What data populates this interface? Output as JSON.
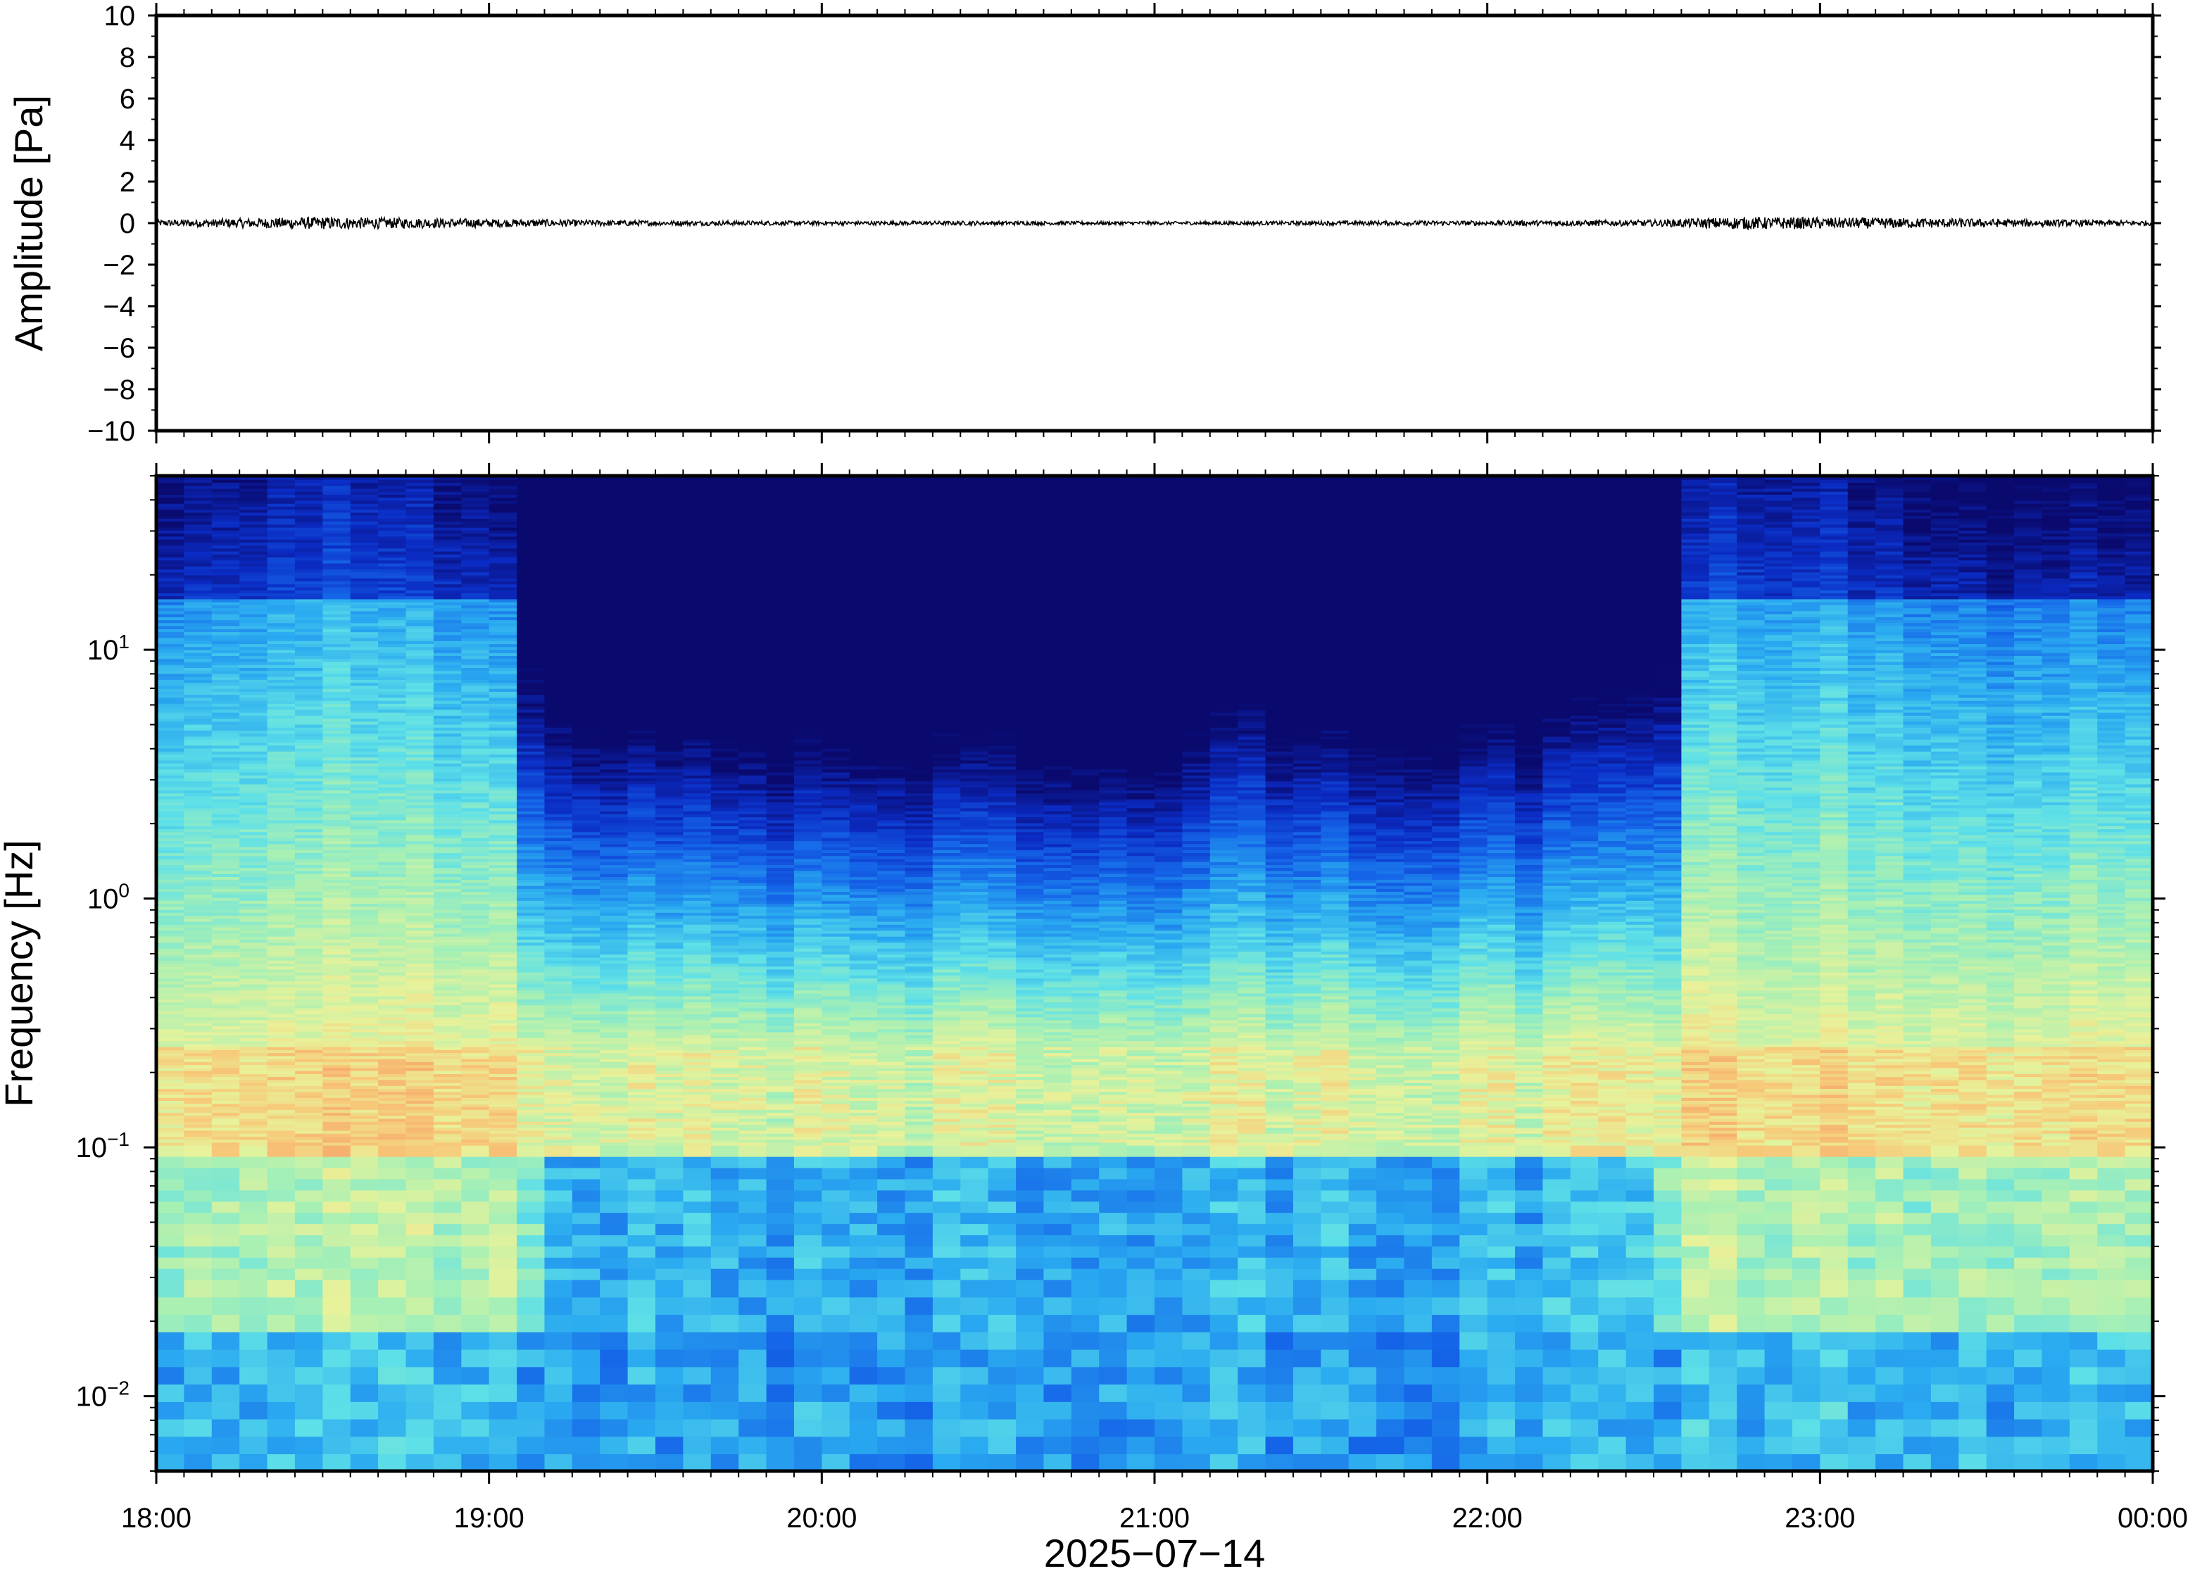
{
  "chart_data": [
    {
      "type": "line",
      "title": "",
      "ylabel": "Amplitude [Pa]",
      "xlabel": "",
      "ylim": [
        -10,
        10
      ],
      "yticks": [
        10,
        8,
        6,
        4,
        2,
        0,
        -2,
        -4,
        -6,
        -8,
        -10
      ],
      "ytick_labels": [
        "10",
        "8",
        "6",
        "4",
        "2",
        "0",
        "−2",
        "−4",
        "−6",
        "−8",
        "−10"
      ],
      "xlim": [
        "18:00",
        "00:00"
      ],
      "grid": false,
      "series": [
        {
          "values_description_free": true,
          "approx_envelope": [
            {
              "t": "18:00",
              "amp": 0.15
            },
            {
              "t": "18:30",
              "amp": 0.3
            },
            {
              "t": "19:00",
              "amp": 0.2
            },
            {
              "t": "19:30",
              "amp": 0.12
            },
            {
              "t": "20:00",
              "amp": 0.1
            },
            {
              "t": "20:30",
              "amp": 0.1
            },
            {
              "t": "21:00",
              "amp": 0.08
            },
            {
              "t": "21:30",
              "amp": 0.1
            },
            {
              "t": "22:00",
              "amp": 0.12
            },
            {
              "t": "22:30",
              "amp": 0.15
            },
            {
              "t": "22:45",
              "amp": 0.3
            },
            {
              "t": "23:15",
              "amp": 0.25
            },
            {
              "t": "23:45",
              "amp": 0.15
            },
            {
              "t": "00:00",
              "amp": 0.12
            }
          ]
        }
      ],
      "color": "#000000"
    },
    {
      "type": "heatmap",
      "title": "",
      "ylabel": "Frequency [Hz]",
      "xlabel": "2025−07−14",
      "yscale": "log",
      "ylim": [
        0.005,
        50
      ],
      "yticks": [
        {
          "value": 10,
          "base": "10",
          "exp": "1"
        },
        {
          "value": 1,
          "base": "10",
          "exp": "0"
        },
        {
          "value": 0.1,
          "base": "10",
          "exp": "−1"
        },
        {
          "value": 0.01,
          "base": "10",
          "exp": "−2"
        }
      ],
      "xticks": [
        "18:00",
        "19:00",
        "20:00",
        "21:00",
        "22:00",
        "23:00",
        "00:00"
      ],
      "xlim": [
        "18:00",
        "00:00"
      ],
      "colormap": [
        "#0a0a6e",
        "#0b2cc4",
        "#1565e8",
        "#2aaaf0",
        "#5ee0e8",
        "#a8f0b4",
        "#e8f29a",
        "#f7c878",
        "#f59a68"
      ],
      "activity_profile": [
        {
          "t": "18:00",
          "level": 0.85
        },
        {
          "t": "18:30",
          "level": 0.95
        },
        {
          "t": "19:00",
          "level": 0.8
        },
        {
          "t": "19:15",
          "level": 0.35
        },
        {
          "t": "20:00",
          "level": 0.25
        },
        {
          "t": "20:30",
          "level": 0.25
        },
        {
          "t": "21:00",
          "level": 0.2
        },
        {
          "t": "21:15",
          "level": 0.45
        },
        {
          "t": "21:30",
          "level": 0.3
        },
        {
          "t": "22:00",
          "level": 0.3
        },
        {
          "t": "22:30",
          "level": 0.45
        },
        {
          "t": "22:40",
          "level": 0.95
        },
        {
          "t": "23:00",
          "level": 0.9
        },
        {
          "t": "23:30",
          "level": 0.75
        },
        {
          "t": "00:00",
          "level": 0.7
        }
      ]
    }
  ]
}
